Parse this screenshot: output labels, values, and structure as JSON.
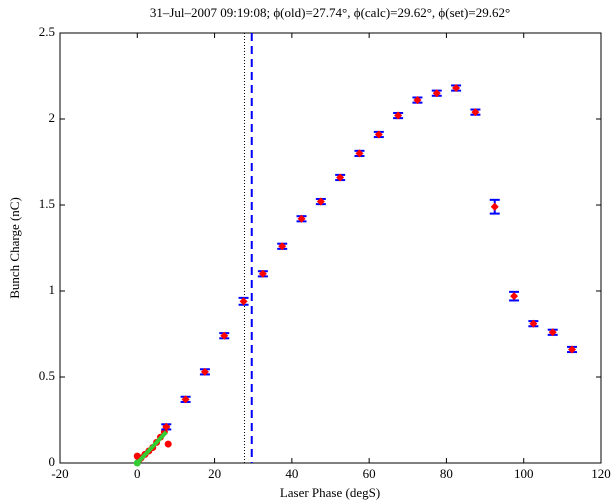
{
  "chart_data": {
    "type": "errorbar",
    "title": "31–Jul–2007 09:19:08; ϕ(old)=27.74°, ϕ(calc)=29.62°, ϕ(set)=29.62°",
    "xlabel": "Laser Phase (degS)",
    "ylabel": "Bunch Charge (nC)",
    "xlim": [
      -20,
      120
    ],
    "ylim": [
      0,
      2.5
    ],
    "xticks": [
      -20,
      0,
      20,
      40,
      60,
      80,
      100,
      120
    ],
    "yticks": [
      0,
      0.5,
      1,
      1.5,
      2,
      2.5
    ],
    "vlines": [
      {
        "x": 27.74,
        "color": "#000000",
        "dash": "dotted"
      },
      {
        "x": 29.62,
        "color": "#0000ff",
        "dash": "dashed"
      }
    ],
    "series": [
      {
        "type": "scatter",
        "color": "#ff0000",
        "x": [
          0,
          0.5,
          1,
          2,
          3,
          4,
          5,
          6,
          7,
          7.5,
          8
        ],
        "values": [
          0.04,
          0.02,
          0.03,
          0.05,
          0.07,
          0.09,
          0.12,
          0.15,
          0.18,
          0.21,
          0.11
        ]
      },
      {
        "type": "line",
        "color": "#33cc33",
        "x": [
          0,
          7.5
        ],
        "values": [
          0,
          0.18
        ]
      },
      {
        "type": "scatter",
        "color": "#33cc33",
        "x": [
          0
        ],
        "values": [
          0
        ]
      },
      {
        "type": "errorbar",
        "color": "#ff0000",
        "bar_color": "#0000ff",
        "x": [
          7.5,
          12.5,
          17.5,
          22.5,
          27.5,
          32.5,
          37.5,
          42.5,
          47.5,
          52.5,
          57.5,
          62.5,
          67.5,
          72.5,
          77.5,
          82.5,
          87.5,
          92.5,
          97.5,
          102.5,
          107.5,
          112.5
        ],
        "values": [
          0.21,
          0.37,
          0.53,
          0.74,
          0.94,
          1.1,
          1.26,
          1.42,
          1.52,
          1.66,
          1.8,
          1.91,
          2.02,
          2.11,
          2.15,
          2.18,
          2.04,
          1.49,
          0.97,
          0.81,
          0.76,
          0.66
        ],
        "errors": [
          0.015,
          0.015,
          0.015,
          0.015,
          0.02,
          0.015,
          0.015,
          0.015,
          0.015,
          0.015,
          0.015,
          0.015,
          0.015,
          0.015,
          0.015,
          0.015,
          0.015,
          0.04,
          0.025,
          0.015,
          0.015,
          0.015
        ]
      }
    ]
  }
}
